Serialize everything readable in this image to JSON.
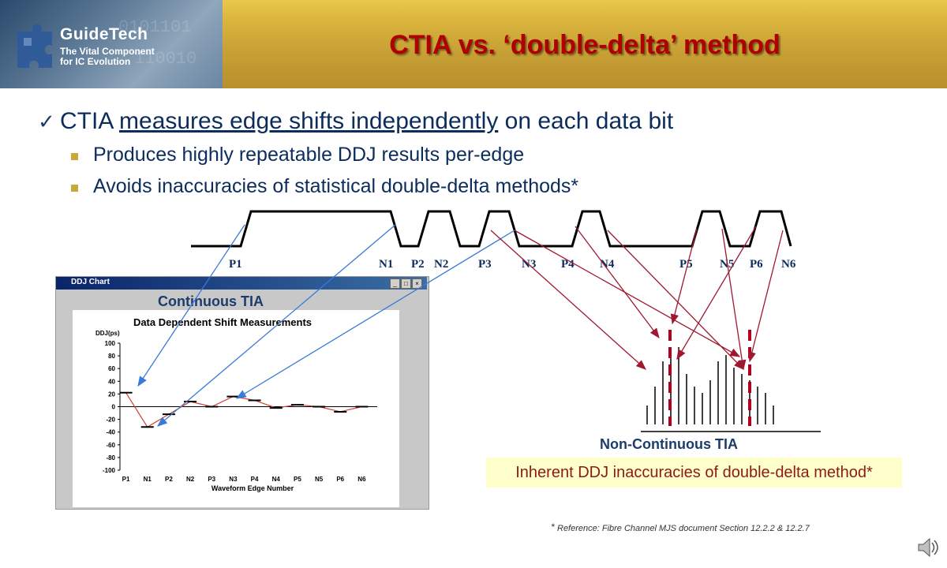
{
  "logo": {
    "wordmark": "GuideTech",
    "tagline_1": "The Vital Component",
    "tagline_2": "for IC Evolution"
  },
  "title": "CTIA vs. ‘double-delta’ method",
  "bullets": {
    "main_prefix": "CTIA ",
    "main_underlined": "measures edge shifts independently",
    "main_suffix": " on each data bit",
    "sub": [
      "Produces highly repeatable DDJ results per-edge",
      "Avoids inaccuracies of statistical double-delta methods*"
    ]
  },
  "waveform_edges": [
    "P1",
    "N1",
    "P2",
    "N2",
    "P3",
    "N3",
    "P4",
    "N4",
    "P5",
    "N5",
    "P6",
    "N6"
  ],
  "ddj_window": {
    "window_title": "DDJ Chart",
    "label": "Continuous TIA"
  },
  "chart_data": {
    "type": "line",
    "title": "Data Dependent Shift Measurements",
    "ylabel": "DDJ(ps)",
    "xlabel": "Waveform Edge Number",
    "categories": [
      "P1",
      "N1",
      "P2",
      "N2",
      "P3",
      "N3",
      "P4",
      "N4",
      "P5",
      "N5",
      "P6",
      "N6"
    ],
    "values": [
      22,
      -32,
      -12,
      8,
      0,
      16,
      10,
      -2,
      3,
      0,
      -8,
      0
    ],
    "yticks": [
      100,
      80,
      60,
      40,
      20,
      0,
      -20,
      -40,
      -60,
      -80,
      -100
    ],
    "ylim": [
      -100,
      100
    ],
    "grid": false,
    "line_color": "#d04030"
  },
  "non_continuous": {
    "label": "Non-Continuous TIA",
    "note": "Inherent DDJ inaccuracies of double-delta method*"
  },
  "reference": {
    "star": "*",
    "text": "Reference: Fibre Channel MJS document Section 12.2.2 & 12.2.7"
  },
  "colors": {
    "title": "#b00000",
    "body_text": "#0c2c5c",
    "bullet_square": "#c8a838",
    "arrow_blue": "#3a7ad8",
    "arrow_red": "#a01830",
    "note_box": "#ffffcc"
  },
  "icons": [
    "checkmark-icon",
    "speaker-icon"
  ]
}
